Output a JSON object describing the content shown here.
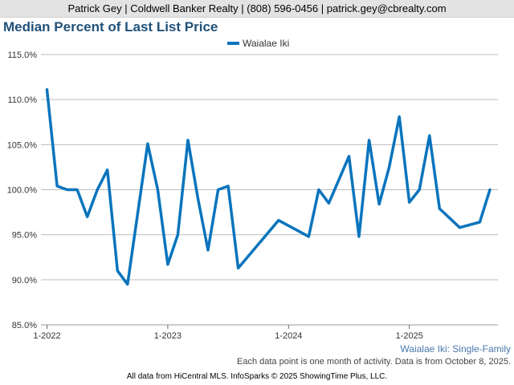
{
  "header": {
    "contact_line": "Patrick Gey | Coldwell Banker Realty | (808) 596-0456 | patrick.gey@cbrealty.com"
  },
  "footer": {
    "note": "Each data point is one month of activity. Data is from October 8, 2025.",
    "credit": "All data from HiCentral MLS. InfoSparks © 2025 ShowingTime Plus, LLC."
  },
  "colors": {
    "series": "#0a74bd",
    "title": "#215179",
    "grid": "#bdbdbd"
  },
  "chart_data": {
    "type": "line",
    "title": "Median Percent of Last List Price",
    "subtitle_label": "Waialae Iki: Single-Family",
    "xlabel": "",
    "ylabel": "",
    "ylim": [
      85,
      115
    ],
    "y_ticks": [
      85,
      90,
      95,
      100,
      105,
      110,
      115
    ],
    "y_tick_labels": [
      "85.0%",
      "90.0%",
      "95.0%",
      "100.0%",
      "105.0%",
      "110.0%",
      "115.0%"
    ],
    "x_ticks": [
      {
        "label": "1-2022",
        "month_index": 0
      },
      {
        "label": "1-2023",
        "month_index": 12
      },
      {
        "label": "1-2024",
        "month_index": 24
      },
      {
        "label": "1-2025",
        "month_index": 36
      }
    ],
    "xlim": [
      -0.6,
      44.8
    ],
    "legend_position": "top-center",
    "series": [
      {
        "name": "Waialae Iki",
        "points": [
          {
            "x": 0,
            "y": 111.1
          },
          {
            "x": 1,
            "y": 100.4
          },
          {
            "x": 2,
            "y": 100.0
          },
          {
            "x": 3,
            "y": 100.0
          },
          {
            "x": 4,
            "y": 97.0
          },
          {
            "x": 5,
            "y": 100.0
          },
          {
            "x": 6,
            "y": 102.2
          },
          {
            "x": 7,
            "y": 91.0
          },
          {
            "x": 8,
            "y": 89.5
          },
          {
            "x": 10,
            "y": 105.1
          },
          {
            "x": 11,
            "y": 100.0
          },
          {
            "x": 12,
            "y": 91.7
          },
          {
            "x": 13,
            "y": 95.0
          },
          {
            "x": 14,
            "y": 105.5
          },
          {
            "x": 15,
            "y": 99.0
          },
          {
            "x": 16,
            "y": 93.3
          },
          {
            "x": 17,
            "y": 100.0
          },
          {
            "x": 18,
            "y": 100.4
          },
          {
            "x": 19,
            "y": 91.3
          },
          {
            "x": 23,
            "y": 96.6
          },
          {
            "x": 26,
            "y": 94.8
          },
          {
            "x": 27,
            "y": 100.0
          },
          {
            "x": 28,
            "y": 98.5
          },
          {
            "x": 30,
            "y": 103.7
          },
          {
            "x": 31,
            "y": 94.8
          },
          {
            "x": 32,
            "y": 105.5
          },
          {
            "x": 33,
            "y": 98.4
          },
          {
            "x": 34,
            "y": 102.5
          },
          {
            "x": 35,
            "y": 108.1
          },
          {
            "x": 36,
            "y": 98.6
          },
          {
            "x": 37,
            "y": 100.0
          },
          {
            "x": 38,
            "y": 106.0
          },
          {
            "x": 39,
            "y": 97.9
          },
          {
            "x": 41,
            "y": 95.8
          },
          {
            "x": 43,
            "y": 96.4
          },
          {
            "x": 44,
            "y": 100.0
          }
        ]
      }
    ]
  }
}
